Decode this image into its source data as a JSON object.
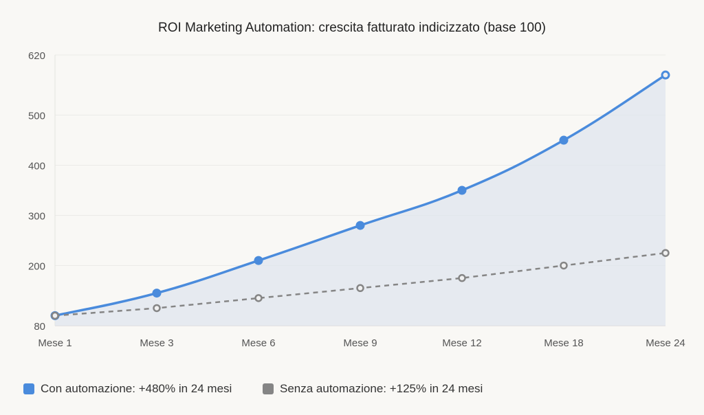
{
  "chart_data": {
    "type": "line",
    "title": "ROI Marketing Automation: crescita fatturato indicizzato (base 100)",
    "categories": [
      "Mese 1",
      "Mese 3",
      "Mese 6",
      "Mese 9",
      "Mese 12",
      "Mese 18",
      "Mese 24"
    ],
    "yticks": [
      80,
      200,
      300,
      400,
      500,
      620
    ],
    "ylim": [
      80,
      620
    ],
    "grid": true,
    "legend_position": "bottom-left",
    "series": [
      {
        "name": "Con automazione: +480% in 24 mesi",
        "values": [
          100,
          145,
          210,
          280,
          350,
          450,
          580
        ],
        "color": "#4a8bdc",
        "style": "solid",
        "fill": true
      },
      {
        "name": "Senza automazione: +125% in 24 mesi",
        "values": [
          100,
          115,
          135,
          155,
          175,
          200,
          225
        ],
        "color": "#858585",
        "style": "dashed",
        "fill": false
      }
    ]
  }
}
